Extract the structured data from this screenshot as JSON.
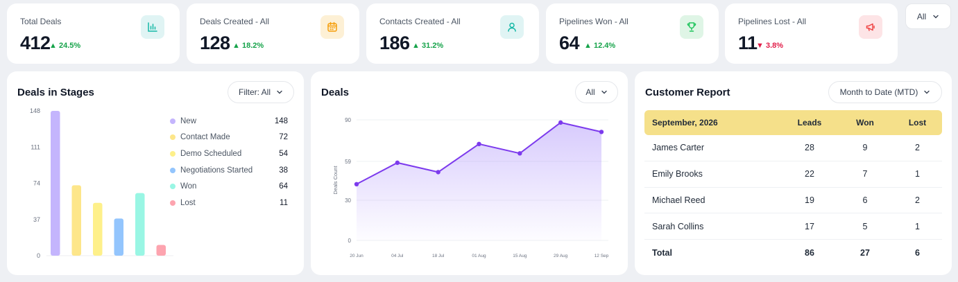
{
  "stats": [
    {
      "label": "Total Deals",
      "value": "412",
      "change": "24.5%",
      "trend": "up",
      "icon": "bar-chart-icon",
      "icon_bg": "#e0f4f4",
      "icon_color": "#14b8a6"
    },
    {
      "label": "Deals Created - All",
      "value": "128",
      "change": "18.2%",
      "trend": "up",
      "icon": "calendar-icon",
      "icon_bg": "#fdf0d5",
      "icon_color": "#f59e0b"
    },
    {
      "label": "Contacts Created - All",
      "value": "186",
      "change": "31.2%",
      "trend": "up",
      "icon": "user-icon",
      "icon_bg": "#e0f4f4",
      "icon_color": "#14b8a6"
    },
    {
      "label": "Pipelines Won - All",
      "value": "64",
      "change": "12.4%",
      "trend": "up",
      "icon": "trophy-icon",
      "icon_bg": "#dff5e6",
      "icon_color": "#22c55e"
    },
    {
      "label": "Pipelines Lost - All",
      "value": "11",
      "change": "3.8%",
      "trend": "down",
      "icon": "megaphone-icon",
      "icon_bg": "#fde4e6",
      "icon_color": "#ef4444"
    }
  ],
  "top_filter": {
    "label": "All"
  },
  "deals_in_stages": {
    "title": "Deals in Stages",
    "filter_label": "Filter: All",
    "chart_data": {
      "type": "bar",
      "categories": [
        "New",
        "Contact Made",
        "Demo Scheduled",
        "Negotiations Started",
        "Won",
        "Lost"
      ],
      "values": [
        148,
        72,
        54,
        38,
        64,
        11
      ],
      "colors": [
        "#c4b5fd",
        "#fde68a",
        "#fef08a",
        "#93c5fd",
        "#99f6e4",
        "#fda4af"
      ],
      "yticks": [
        0,
        37,
        74,
        111,
        148
      ],
      "ylim": [
        0,
        148
      ]
    },
    "legend": [
      {
        "name": "New",
        "value": "148",
        "color": "#c4b5fd"
      },
      {
        "name": "Contact Made",
        "value": "72",
        "color": "#fde68a"
      },
      {
        "name": "Demo Scheduled",
        "value": "54",
        "color": "#fef08a"
      },
      {
        "name": "Negotiations Started",
        "value": "38",
        "color": "#93c5fd"
      },
      {
        "name": "Won",
        "value": "64",
        "color": "#99f6e4"
      },
      {
        "name": "Lost",
        "value": "11",
        "color": "#fda4af"
      }
    ]
  },
  "deals": {
    "title": "Deals",
    "filter_label": "All",
    "chart_data": {
      "type": "area",
      "x": [
        "20 Jun",
        "04 Jul",
        "18 Jul",
        "01 Aug",
        "15 Aug",
        "29 Aug",
        "12 Sep"
      ],
      "values": [
        42,
        58,
        51,
        72,
        65,
        88,
        81
      ],
      "yticks": [
        0,
        30,
        59,
        90
      ],
      "ylim": [
        0,
        90
      ],
      "ylabel": "Deals Count",
      "color": "#7c3aed"
    }
  },
  "customer_report": {
    "title": "Customer Report",
    "filter_label": "Month to Date (MTD)",
    "header": {
      "period": "September, 2026",
      "leads": "Leads",
      "won": "Won",
      "lost": "Lost"
    },
    "rows": [
      {
        "name": "James Carter",
        "leads": "28",
        "won": "9",
        "lost": "2"
      },
      {
        "name": "Emily Brooks",
        "leads": "22",
        "won": "7",
        "lost": "1"
      },
      {
        "name": "Michael Reed",
        "leads": "19",
        "won": "6",
        "lost": "2"
      },
      {
        "name": "Sarah Collins",
        "leads": "17",
        "won": "5",
        "lost": "1"
      }
    ],
    "total": {
      "label": "Total",
      "leads": "86",
      "won": "27",
      "lost": "6"
    }
  }
}
